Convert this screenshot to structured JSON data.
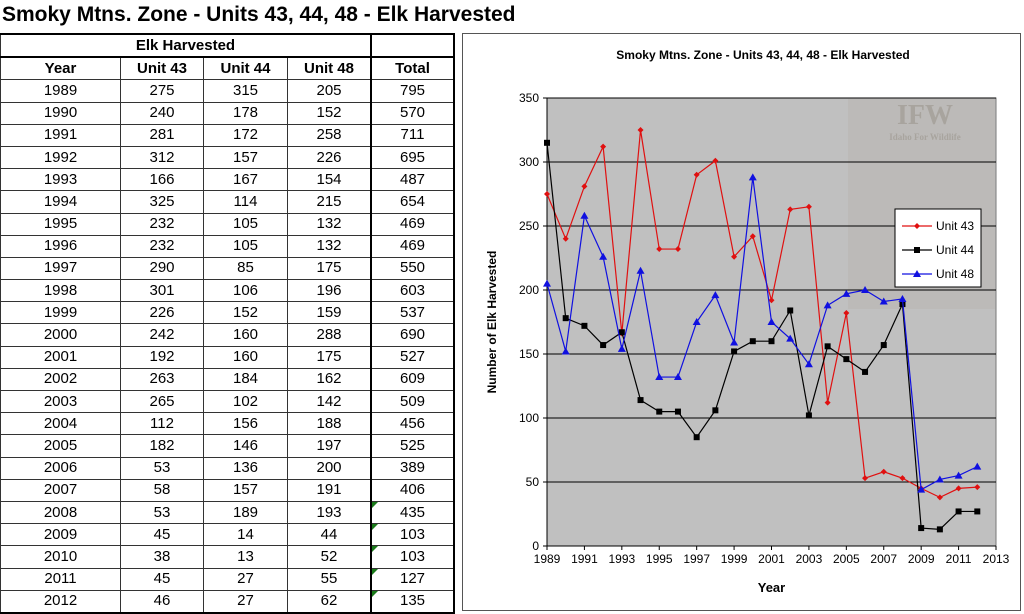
{
  "title": "Smoky Mtns. Zone - Units 43, 44, 48 - Elk Harvested",
  "table": {
    "group_header": "Elk Harvested",
    "columns": [
      "Year",
      "Unit 43",
      "Unit 44",
      "Unit 48",
      "Total"
    ],
    "rows": [
      [
        "1989",
        "275",
        "315",
        "205",
        "795"
      ],
      [
        "1990",
        "240",
        "178",
        "152",
        "570"
      ],
      [
        "1991",
        "281",
        "172",
        "258",
        "711"
      ],
      [
        "1992",
        "312",
        "157",
        "226",
        "695"
      ],
      [
        "1993",
        "166",
        "167",
        "154",
        "487"
      ],
      [
        "1994",
        "325",
        "114",
        "215",
        "654"
      ],
      [
        "1995",
        "232",
        "105",
        "132",
        "469"
      ],
      [
        "1996",
        "232",
        "105",
        "132",
        "469"
      ],
      [
        "1997",
        "290",
        "85",
        "175",
        "550"
      ],
      [
        "1998",
        "301",
        "106",
        "196",
        "603"
      ],
      [
        "1999",
        "226",
        "152",
        "159",
        "537"
      ],
      [
        "2000",
        "242",
        "160",
        "288",
        "690"
      ],
      [
        "2001",
        "192",
        "160",
        "175",
        "527"
      ],
      [
        "2002",
        "263",
        "184",
        "162",
        "609"
      ],
      [
        "2003",
        "265",
        "102",
        "142",
        "509"
      ],
      [
        "2004",
        "112",
        "156",
        "188",
        "456"
      ],
      [
        "2005",
        "182",
        "146",
        "197",
        "525"
      ],
      [
        "2006",
        "53",
        "136",
        "200",
        "389"
      ],
      [
        "2007",
        "58",
        "157",
        "191",
        "406"
      ],
      [
        "2008",
        "53",
        "189",
        "193",
        "435"
      ],
      [
        "2009",
        "45",
        "14",
        "44",
        "103"
      ],
      [
        "2010",
        "38",
        "13",
        "52",
        "103"
      ],
      [
        "2011",
        "45",
        "27",
        "55",
        "127"
      ],
      [
        "2012",
        "46",
        "27",
        "62",
        "135"
      ]
    ],
    "error_flag_years": [
      "2008",
      "2009",
      "2010",
      "2011",
      "2012"
    ],
    "error_flag_color": "#1a7a1a"
  },
  "chart_data": {
    "type": "line",
    "title": "Smoky Mtns. Zone - Units 43, 44, 48 - Elk Harvested",
    "xlabel": "Year",
    "ylabel": "Number of Elk Harvested",
    "xlim": [
      1989,
      2013
    ],
    "ylim": [
      0,
      350
    ],
    "xticks": [
      1989,
      1991,
      1993,
      1995,
      1997,
      1999,
      2001,
      2003,
      2005,
      2007,
      2009,
      2011,
      2013
    ],
    "yticks": [
      0,
      50,
      100,
      150,
      200,
      250,
      300,
      350
    ],
    "grid": "horizontal",
    "legend": "right",
    "plot_background": "#c0c0c0",
    "watermark": {
      "logo": "IFW",
      "text": "Idaho For Wildlife"
    },
    "x": [
      1989,
      1990,
      1991,
      1992,
      1993,
      1994,
      1995,
      1996,
      1997,
      1998,
      1999,
      2000,
      2001,
      2002,
      2003,
      2004,
      2005,
      2006,
      2007,
      2008,
      2009,
      2010,
      2011,
      2012
    ],
    "series": [
      {
        "name": "Unit 43",
        "color": "#e01010",
        "marker": "diamond",
        "values": [
          275,
          240,
          281,
          312,
          166,
          325,
          232,
          232,
          290,
          301,
          226,
          242,
          192,
          263,
          265,
          112,
          182,
          53,
          58,
          53,
          45,
          38,
          45,
          46
        ]
      },
      {
        "name": "Unit 44",
        "color": "#000000",
        "marker": "square",
        "values": [
          315,
          178,
          172,
          157,
          167,
          114,
          105,
          105,
          85,
          106,
          152,
          160,
          160,
          184,
          102,
          156,
          146,
          136,
          157,
          189,
          14,
          13,
          27,
          27
        ]
      },
      {
        "name": "Unit 48",
        "color": "#1010e0",
        "marker": "triangle",
        "values": [
          205,
          152,
          258,
          226,
          154,
          215,
          132,
          132,
          175,
          196,
          159,
          288,
          175,
          162,
          142,
          188,
          197,
          200,
          191,
          193,
          44,
          52,
          55,
          62
        ]
      }
    ]
  }
}
